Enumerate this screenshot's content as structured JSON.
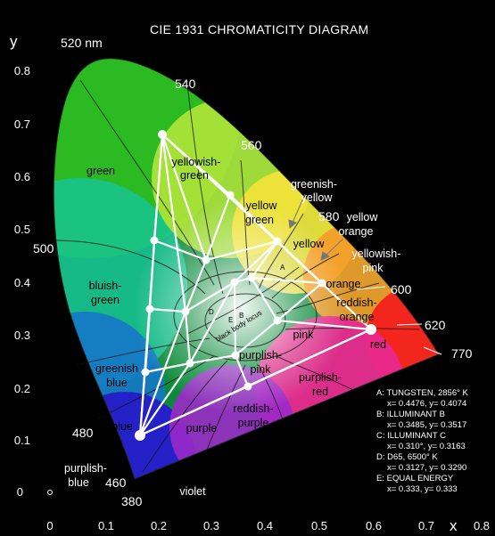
{
  "title": "CIE 1931 CHROMATICITY DIAGRAM",
  "axes": {
    "x_label": "x",
    "y_label": "y",
    "x_ticks": [
      "0",
      "0.1",
      "0.2",
      "0.3",
      "0.4",
      "0.5",
      "0.6",
      "0.7",
      "0.8"
    ],
    "y_ticks": [
      "0",
      "0.1",
      "0.2",
      "0.3",
      "0.4",
      "0.5",
      "0.6",
      "0.7",
      "0.8"
    ]
  },
  "wavelengths": {
    "w520": "520 nm",
    "w540": "540",
    "w560": "560",
    "w580": "580",
    "w600": "600",
    "w620": "620",
    "w770": "770",
    "w500": "500",
    "w480": "480",
    "w460": "460",
    "w380": "380"
  },
  "regions": {
    "green": "green",
    "yellowish_green_1": "yellowish-",
    "yellowish_green_2": "green",
    "yellow_green_1": "yellow",
    "yellow_green_2": "green",
    "greenish_yellow_1": "greenish-",
    "greenish_yellow_2": "yellow",
    "yellow": "yellow",
    "yellow_orange_1": "yellow",
    "yellow_orange_2": "orange",
    "yellowish_pink_1": "yellowish-",
    "yellowish_pink_2": "pink",
    "orange": "orange",
    "reddish_orange_1": "reddish-",
    "reddish_orange_2": "orange",
    "bluish_green_1": "bluish-",
    "bluish_green_2": "green",
    "pink": "pink",
    "red": "red",
    "greenish_blue_1": "greenish",
    "greenish_blue_2": "blue",
    "purplish_pink_1": "purplish-",
    "purplish_pink_2": "pink",
    "purplish_red_1": "purplish-",
    "purplish_red_2": "red",
    "reddish_purple_1": "reddish-",
    "reddish_purple_2": "purple",
    "blue": "blue",
    "purple": "purple",
    "purplish_blue_1": "purplish-",
    "purplish_blue_2": "blue",
    "violet": "violet",
    "locus": "black body locus",
    "point_a": "A",
    "point_b": "B",
    "point_d": "D",
    "point_e": "E"
  },
  "legend": {
    "a_title": "A:  TUNGSTEN, 2856° K",
    "a_coords": "x= 0.4476, y= 0.4074",
    "b_title": "B:  ILLUMINANT B",
    "b_coords": "x= 0.3485, y= 0.3517",
    "c_title": "C:  ILLUMINANT C",
    "c_coords": "x= 0.310°, y= 0.3163",
    "d_title": "D:  D65, 6500° K",
    "d_coords": "x= 0.3127, y= 0.3290",
    "e_title": "E:  EQUAL ENERGY",
    "e_coords": "x= 0.333, y= 0.333"
  }
}
